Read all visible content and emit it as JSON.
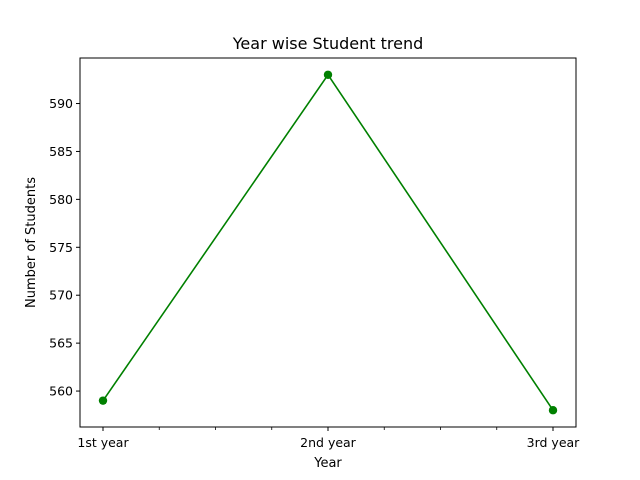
{
  "chart_data": {
    "type": "line",
    "title": "Year wise Student trend",
    "xlabel": "Year",
    "ylabel": "Number of Students",
    "categories": [
      "1st year",
      "2nd year",
      "3rd year"
    ],
    "series": [
      {
        "values": [
          559,
          593,
          558
        ],
        "color": "#008000",
        "marker": "circle"
      }
    ],
    "ylim": [
      556.25,
      594.75
    ],
    "yticks": [
      560,
      565,
      570,
      575,
      580,
      585,
      590
    ],
    "minor_xticks_between_categories": 3,
    "grid": false,
    "legend": "none"
  }
}
